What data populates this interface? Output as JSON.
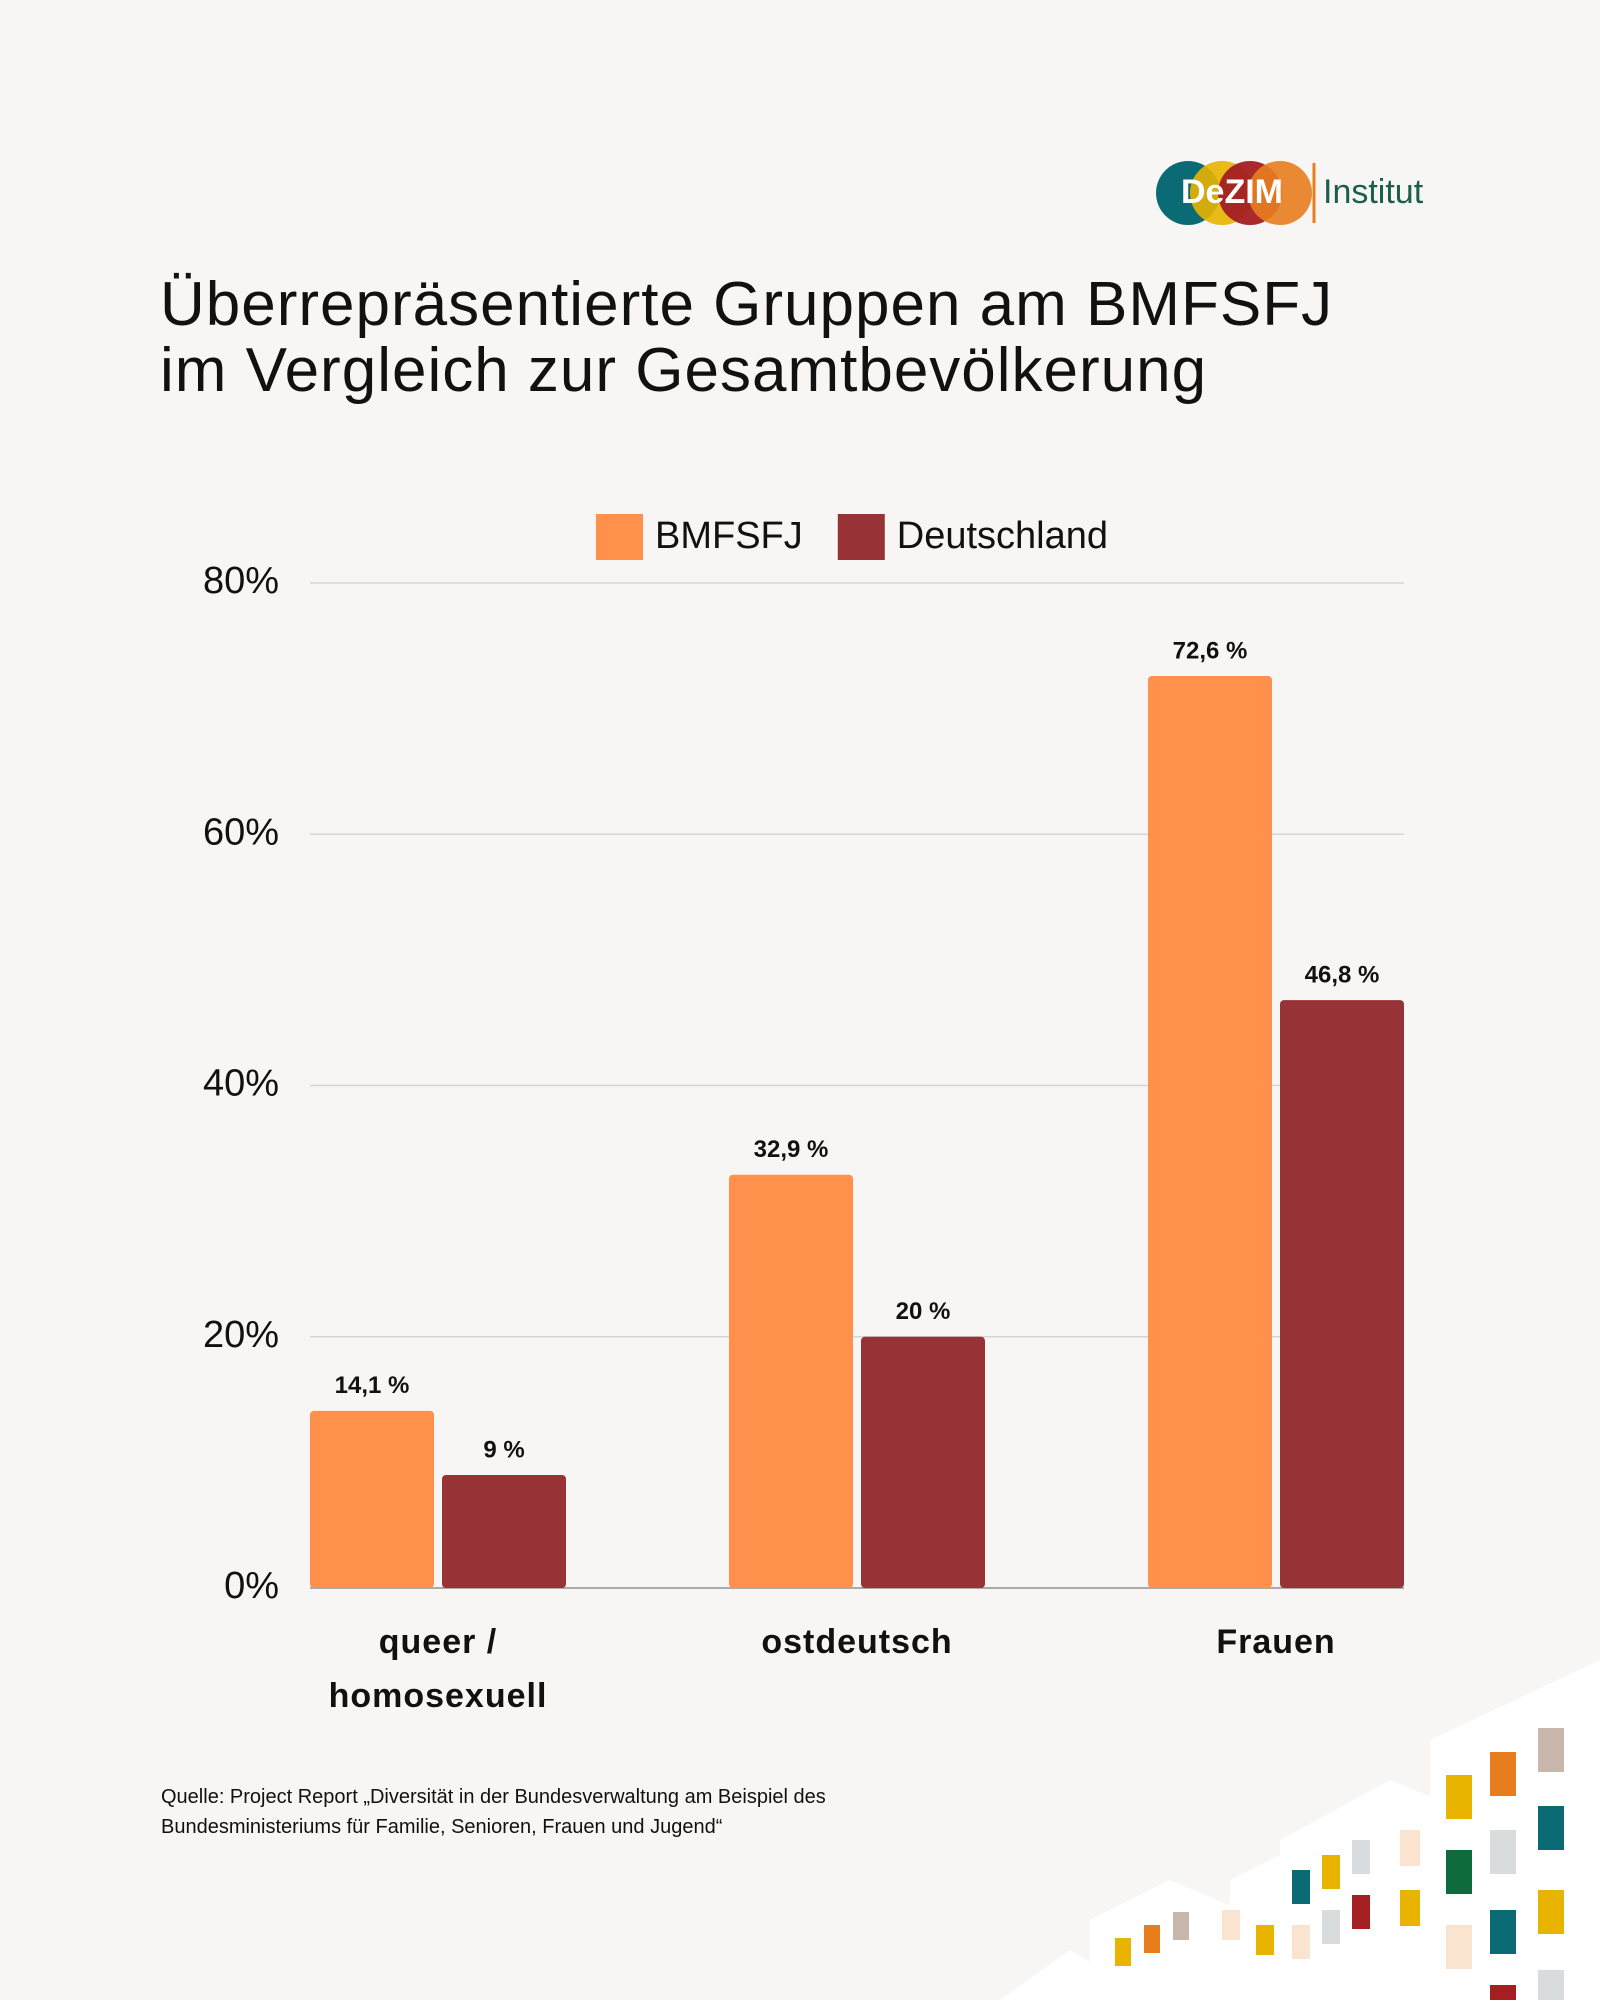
{
  "logo": {
    "name": "DeZIM",
    "label": "Institut"
  },
  "chart_data": {
    "type": "bar",
    "title": "Überrepräsentierte Gruppen am BMFSFJ im Vergleich zur Gesamtbevölkerung",
    "categories": [
      "queer / homosexuell",
      "ostdeutsch",
      "Frauen"
    ],
    "series": [
      {
        "name": "BMFSFJ",
        "color": "#FF914D",
        "values": [
          14.1,
          32.9,
          72.6
        ],
        "value_labels": [
          "14,1 %",
          "32,9 %",
          "72,6 %"
        ]
      },
      {
        "name": "Deutschland",
        "color": "#973236",
        "values": [
          9,
          20,
          46.8
        ],
        "value_labels": [
          "9 %",
          "20 %",
          "46,8 %"
        ]
      }
    ],
    "ylim": [
      0,
      80
    ],
    "yticks": [
      {
        "value": 0,
        "label": "0%"
      },
      {
        "value": 20,
        "label": "20%"
      },
      {
        "value": 40,
        "label": "40%"
      },
      {
        "value": 60,
        "label": "60%"
      },
      {
        "value": 80,
        "label": "80%"
      }
    ],
    "grid": true,
    "legend": "top",
    "source": "Quelle: Project Report „Diversität in der Bundesverwaltung am Beispiel des Bundesministeriums für Familie, Senioren, Frauen und Jugend“"
  }
}
